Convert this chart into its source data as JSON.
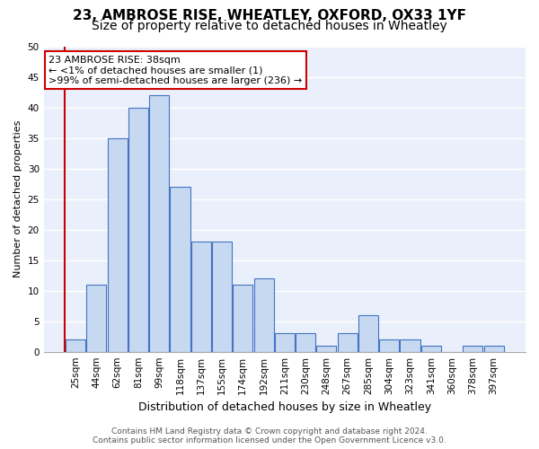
{
  "title": "23, AMBROSE RISE, WHEATLEY, OXFORD, OX33 1YF",
  "subtitle": "Size of property relative to detached houses in Wheatley",
  "xlabel": "Distribution of detached houses by size in Wheatley",
  "ylabel": "Number of detached properties",
  "bar_labels": [
    "25sqm",
    "44sqm",
    "62sqm",
    "81sqm",
    "99sqm",
    "118sqm",
    "137sqm",
    "155sqm",
    "174sqm",
    "192sqm",
    "211sqm",
    "230sqm",
    "248sqm",
    "267sqm",
    "285sqm",
    "304sqm",
    "323sqm",
    "341sqm",
    "360sqm",
    "378sqm",
    "397sqm"
  ],
  "bar_values": [
    2,
    11,
    35,
    40,
    42,
    27,
    18,
    18,
    11,
    12,
    3,
    3,
    1,
    3,
    6,
    2,
    2,
    1,
    0,
    1,
    1
  ],
  "bar_color": "#c6d9f0",
  "bar_edge_color": "#4472c4",
  "property_line_color": "#cc0000",
  "annotation_box_text": "23 AMBROSE RISE: 38sqm\n← <1% of detached houses are smaller (1)\n>99% of semi-detached houses are larger (236) →",
  "annotation_box_edge_color": "#cc0000",
  "ylim": [
    0,
    50
  ],
  "yticks": [
    0,
    5,
    10,
    15,
    20,
    25,
    30,
    35,
    40,
    45,
    50
  ],
  "footer_line1": "Contains HM Land Registry data © Crown copyright and database right 2024.",
  "footer_line2": "Contains public sector information licensed under the Open Government Licence v3.0.",
  "background_color": "#eaf0fb",
  "grid_color": "#ffffff",
  "title_fontsize": 11,
  "subtitle_fontsize": 10,
  "axis_label_fontsize": 9,
  "ylabel_fontsize": 8,
  "tick_fontsize": 7.5,
  "annotation_fontsize": 8,
  "footer_fontsize": 6.5
}
